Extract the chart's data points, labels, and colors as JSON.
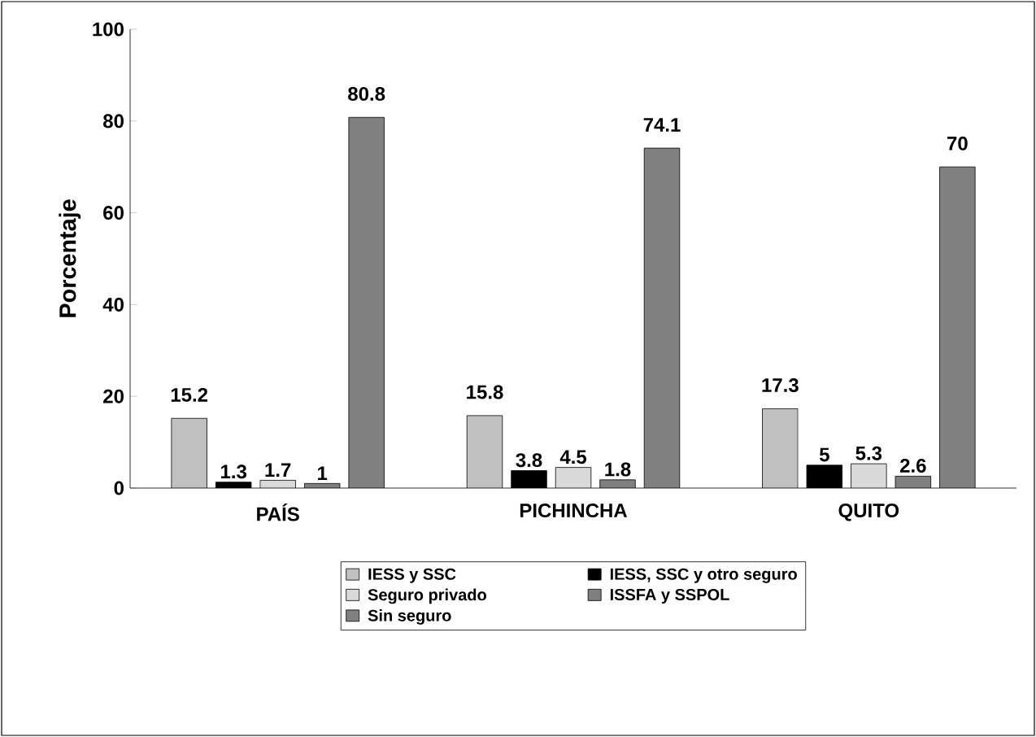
{
  "chart_data": {
    "type": "bar",
    "ylabel": "Porcentaje",
    "categories": [
      "PAÍS",
      "PICHINCHA",
      "QUITO"
    ],
    "series": [
      {
        "name": "IESS y SSC",
        "color": "#c0c0c0",
        "values": [
          15.2,
          15.8,
          17.3
        ]
      },
      {
        "name": "IESS, SSC y otro seguro",
        "color": "#000000",
        "values": [
          1.3,
          3.8,
          5
        ]
      },
      {
        "name": "Seguro privado",
        "color": "#d9d9d9",
        "values": [
          1.7,
          4.5,
          5.3
        ]
      },
      {
        "name": "ISSFA y SSPOL",
        "color": "#7f7f7f",
        "values": [
          1,
          1.8,
          2.6
        ]
      },
      {
        "name": "Sin seguro",
        "color": "#808080",
        "values": [
          80.8,
          74.1,
          70
        ]
      }
    ],
    "ylim": [
      0,
      100
    ],
    "yticks": [
      0,
      20,
      40,
      60,
      80,
      100
    ],
    "data_labels": true,
    "legend": "bottom",
    "grid": false
  }
}
